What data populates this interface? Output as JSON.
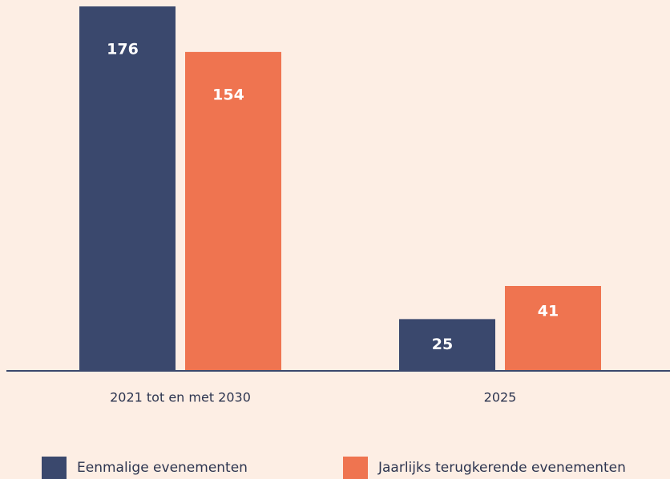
{
  "chart_data": {
    "type": "bar",
    "categories": [
      "2021 tot en met 2030",
      "2025"
    ],
    "series": [
      {
        "name": "Eenmalige evenementen",
        "color": "#3a486d",
        "values": [
          176,
          25
        ]
      },
      {
        "name": "Jaarlijks terugkerende evenementen",
        "color": "#ef7450",
        "values": [
          154,
          41
        ]
      }
    ]
  }
}
